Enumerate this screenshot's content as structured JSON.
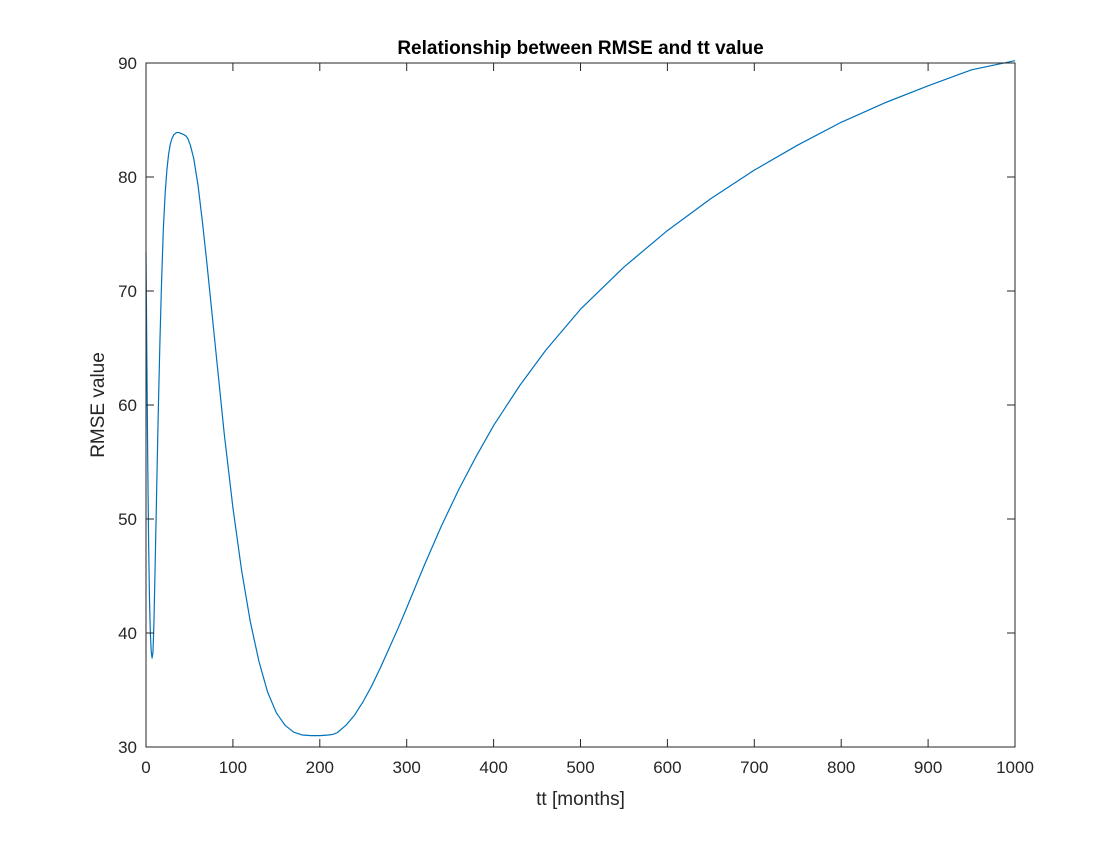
{
  "chart_data": {
    "type": "line",
    "title": "Relationship between RMSE and tt value",
    "xlabel": "tt [months]",
    "ylabel": "RMSE value",
    "xlim": [
      0,
      1000
    ],
    "ylim": [
      30,
      90
    ],
    "xticks": [
      0,
      100,
      200,
      300,
      400,
      500,
      600,
      700,
      800,
      900,
      1000
    ],
    "yticks": [
      30,
      40,
      50,
      60,
      70,
      80,
      90
    ],
    "grid": false,
    "box": true,
    "series": [
      {
        "color": "#0072BD",
        "x": [
          0,
          1,
          2,
          3,
          4,
          5,
          6,
          7,
          8,
          9,
          10,
          12,
          14,
          16,
          18,
          20,
          22,
          24,
          26,
          28,
          30,
          32,
          35,
          38,
          41,
          44,
          46,
          48,
          51,
          55,
          60,
          65,
          70,
          80,
          90,
          100,
          110,
          120,
          130,
          140,
          150,
          160,
          170,
          180,
          190,
          200,
          210,
          215,
          220,
          230,
          240,
          250,
          260,
          270,
          280,
          290,
          300,
          320,
          340,
          360,
          380,
          400,
          430,
          460,
          500,
          550,
          600,
          650,
          700,
          750,
          800,
          850,
          900,
          950,
          1000
        ],
        "y": [
          73.4,
          64.0,
          55.0,
          48.0,
          43.0,
          40.0,
          38.4,
          37.8,
          38.3,
          40.5,
          44.0,
          51.5,
          59.0,
          65.5,
          71.0,
          75.5,
          78.5,
          80.6,
          82.0,
          82.9,
          83.4,
          83.7,
          83.9,
          83.9,
          83.8,
          83.7,
          83.6,
          83.4,
          82.8,
          81.6,
          79.2,
          76.0,
          72.5,
          65.0,
          57.5,
          51.0,
          45.5,
          41.0,
          37.5,
          34.8,
          33.0,
          31.9,
          31.3,
          31.05,
          31.0,
          31.0,
          31.05,
          31.1,
          31.25,
          31.9,
          32.8,
          34.0,
          35.4,
          37.0,
          38.7,
          40.4,
          42.2,
          45.9,
          49.4,
          52.6,
          55.5,
          58.2,
          61.7,
          64.8,
          68.4,
          72.1,
          75.3,
          78.1,
          80.6,
          82.8,
          84.8,
          86.5,
          88.0,
          89.4,
          90.2
        ]
      }
    ]
  }
}
